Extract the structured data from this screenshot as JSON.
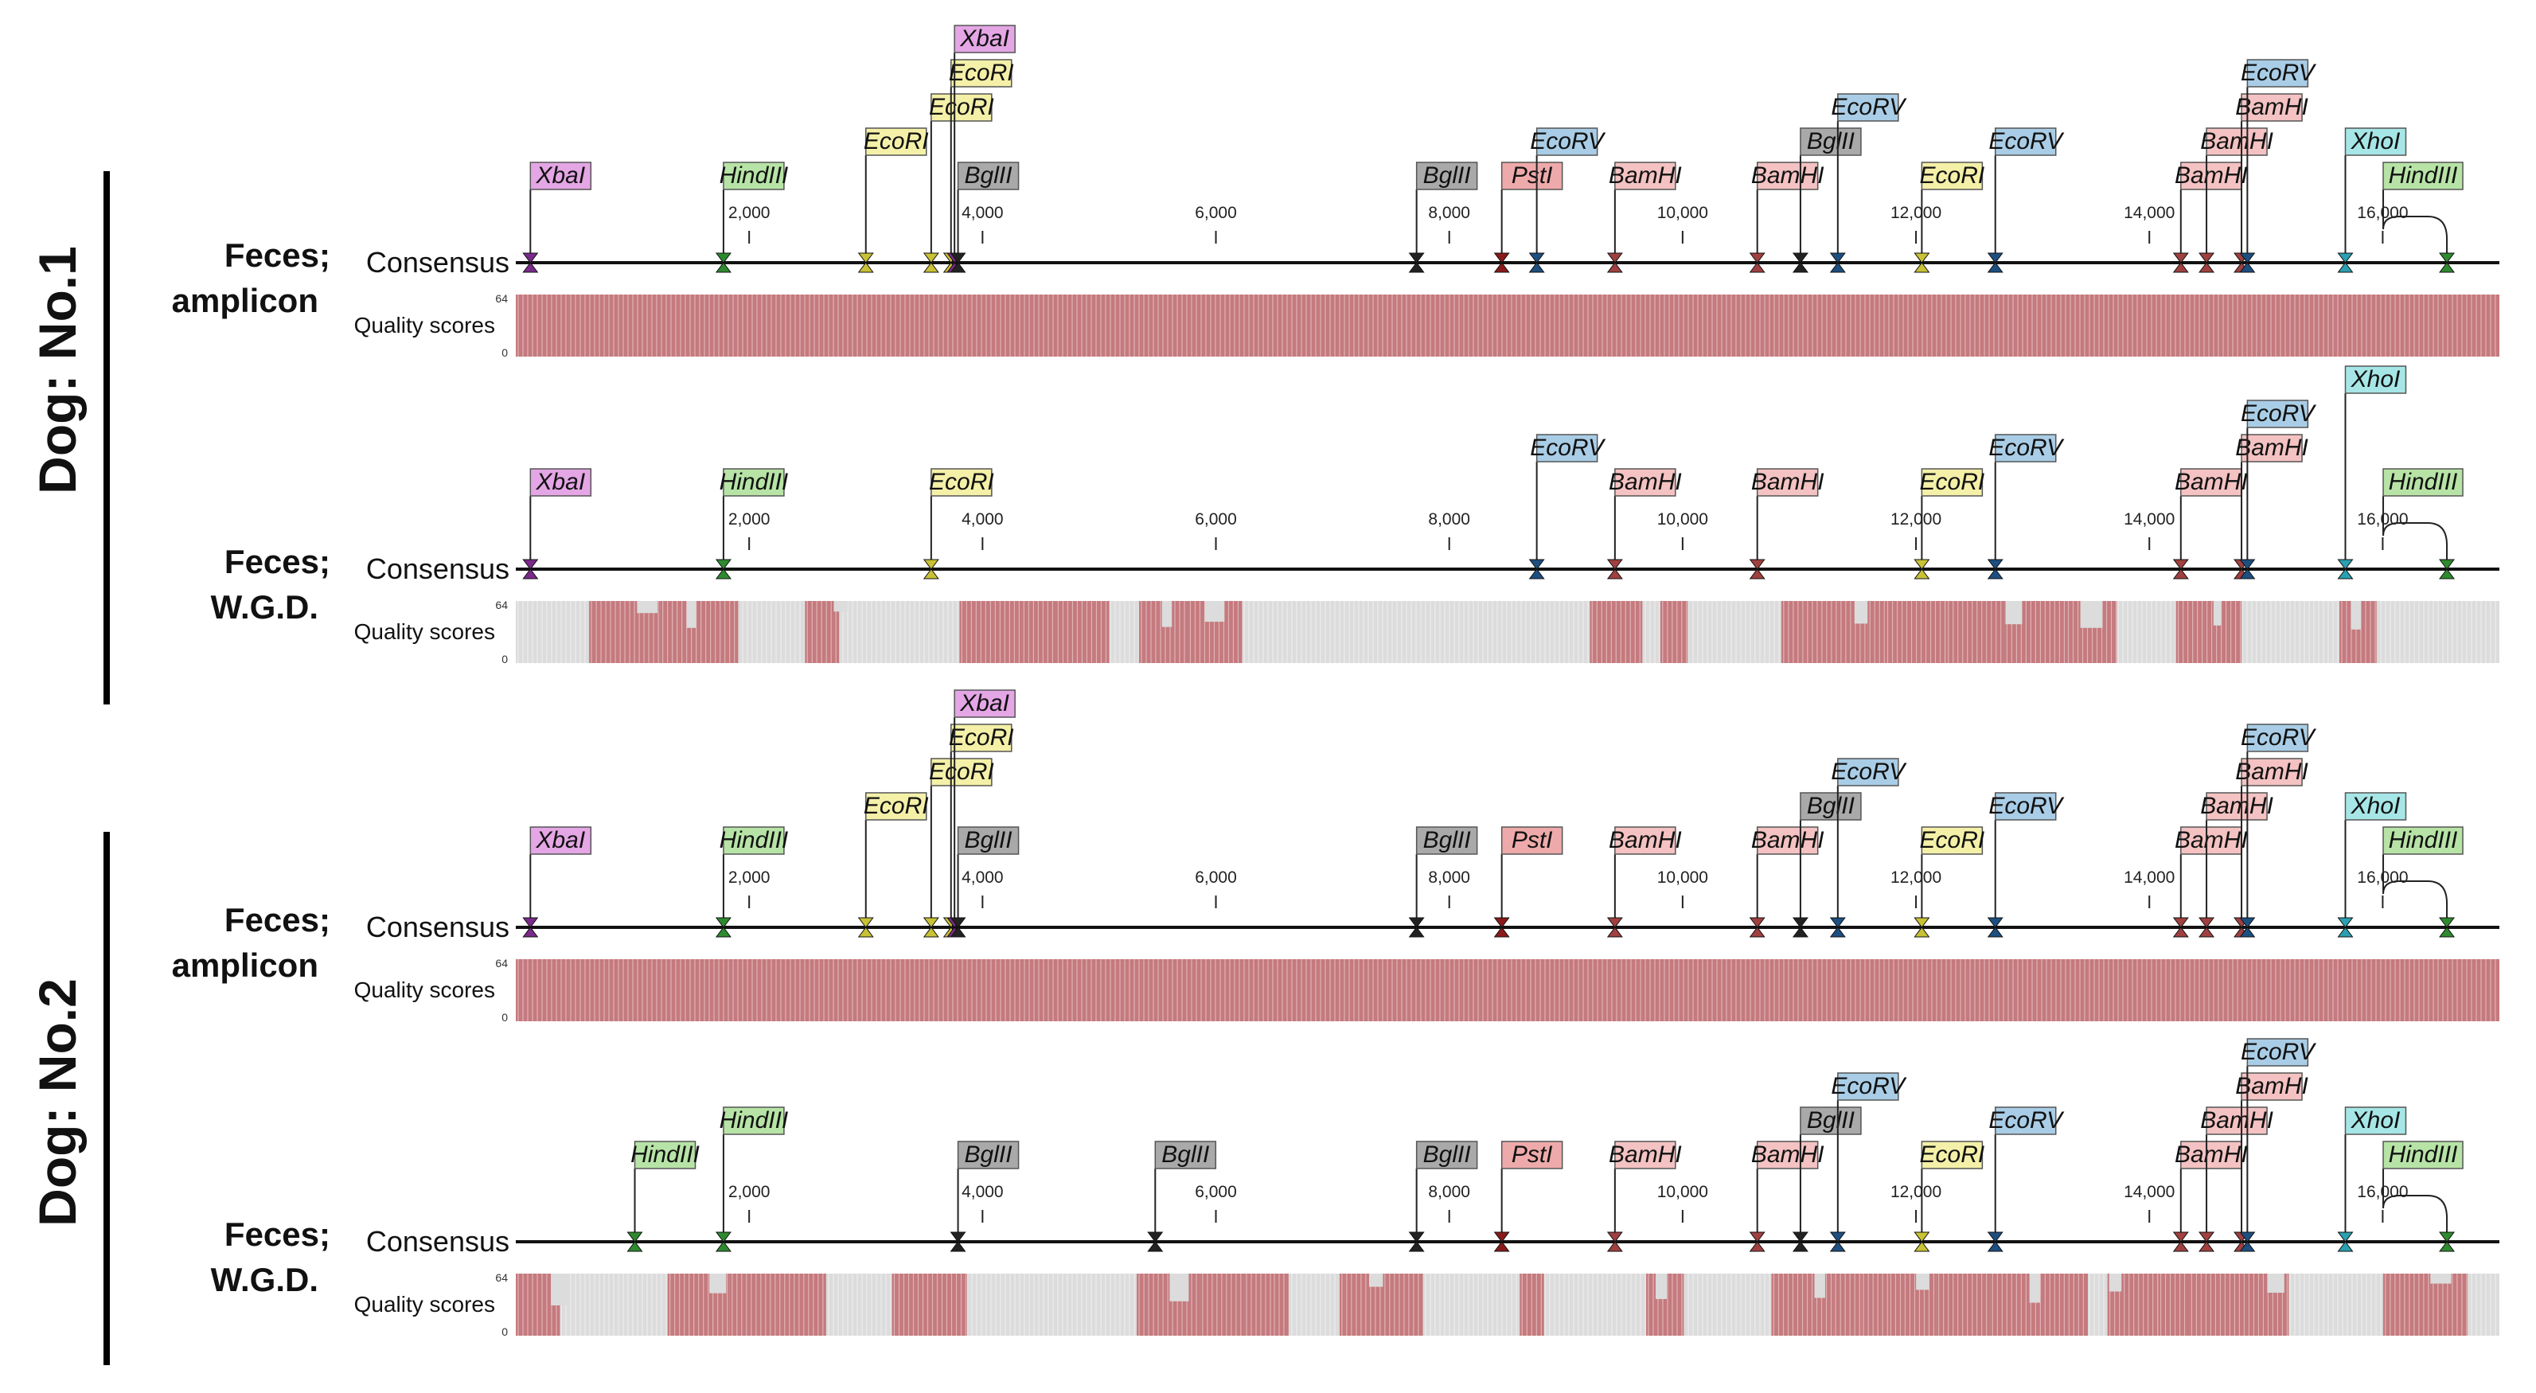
{
  "enzyme_colors": {
    "XbaI": "#e4a6e4",
    "HindIII": "#b7e4a6",
    "EcoRI": "#f4f0a8",
    "BglII": "#a9a9a9",
    "PstI": "#eeaaaa",
    "BamHI": "#f4c2c2",
    "EcoRV": "#a9cde6",
    "XhoI": "#a6e6e6"
  },
  "marker_colors": {
    "XbaI": "#7a2a8a",
    "HindIII": "#2e8a2e",
    "EcoRI": "#c9c234",
    "BglII": "#222222",
    "PstI": "#8a1a1a",
    "BamHI": "#a04040",
    "EcoRV": "#1d4f80",
    "XhoI": "#2aa0b0"
  },
  "quality_colors": {
    "bar": "#c47a7e",
    "gap": "#dcdcdc"
  },
  "groups": [
    {
      "label": "Dog: No.1"
    },
    {
      "label": "Dog: No.2"
    }
  ],
  "tracks": [
    {
      "sample_line1": "Feces;",
      "sample_line2": "amplicon",
      "consensus_label": "Consensus",
      "quality_label": "Quality scores",
      "q_max": "64",
      "q_min": "0",
      "ticks": [
        "2,000",
        "4,000",
        "6,000",
        "8,000",
        "10,000",
        "12,000",
        "14,000",
        "16,000"
      ],
      "quality": "full",
      "sites": [
        {
          "enzyme": "XbaI",
          "pos": 125,
          "level": 0
        },
        {
          "enzyme": "HindIII",
          "pos": 1780,
          "level": 0
        },
        {
          "enzyme": "EcoRI",
          "pos": 3000,
          "level": 1
        },
        {
          "enzyme": "EcoRI",
          "pos": 3560,
          "level": 2
        },
        {
          "enzyme": "EcoRI",
          "pos": 3730,
          "level": 3
        },
        {
          "enzyme": "XbaI",
          "pos": 3760,
          "level": 4
        },
        {
          "enzyme": "BglII",
          "pos": 3790,
          "level": 0
        },
        {
          "enzyme": "BglII",
          "pos": 7720,
          "level": 0
        },
        {
          "enzyme": "PstI",
          "pos": 8450,
          "level": 0
        },
        {
          "enzyme": "EcoRV",
          "pos": 8750,
          "level": 1
        },
        {
          "enzyme": "BamHI",
          "pos": 9420,
          "level": 0
        },
        {
          "enzyme": "BamHI",
          "pos": 10640,
          "level": 0
        },
        {
          "enzyme": "BglII",
          "pos": 11010,
          "level": 1
        },
        {
          "enzyme": "EcoRV",
          "pos": 11330,
          "level": 2
        },
        {
          "enzyme": "EcoRI",
          "pos": 12050,
          "level": 0
        },
        {
          "enzyme": "EcoRV",
          "pos": 12680,
          "level": 1
        },
        {
          "enzyme": "BamHI",
          "pos": 14270,
          "level": 0
        },
        {
          "enzyme": "BamHI",
          "pos": 14490,
          "level": 1
        },
        {
          "enzyme": "BamHI",
          "pos": 14790,
          "level": 2
        },
        {
          "enzyme": "EcoRV",
          "pos": 14840,
          "level": 3
        },
        {
          "enzyme": "XhoI",
          "pos": 15680,
          "level": 1
        },
        {
          "enzyme": "HindIII",
          "pos": 16550,
          "level": 0,
          "hook": true
        }
      ]
    },
    {
      "sample_line1": "Feces;",
      "sample_line2": "W.G.D.",
      "consensus_label": "Consensus",
      "quality_label": "Quality scores",
      "q_max": "64",
      "q_min": "0",
      "ticks": [
        "2,000",
        "4,000",
        "6,000",
        "8,000",
        "10,000",
        "12,000",
        "14,000",
        "16,000"
      ],
      "quality": "gappy",
      "sites": [
        {
          "enzyme": "XbaI",
          "pos": 125,
          "level": 0
        },
        {
          "enzyme": "HindIII",
          "pos": 1780,
          "level": 0
        },
        {
          "enzyme": "EcoRI",
          "pos": 3560,
          "level": 0
        },
        {
          "enzyme": "EcoRV",
          "pos": 8750,
          "level": 1
        },
        {
          "enzyme": "BamHI",
          "pos": 9420,
          "level": 0
        },
        {
          "enzyme": "BamHI",
          "pos": 10640,
          "level": 0
        },
        {
          "enzyme": "EcoRI",
          "pos": 12050,
          "level": 0
        },
        {
          "enzyme": "EcoRV",
          "pos": 12680,
          "level": 1
        },
        {
          "enzyme": "BamHI",
          "pos": 14270,
          "level": 0
        },
        {
          "enzyme": "BamHI",
          "pos": 14790,
          "level": 1
        },
        {
          "enzyme": "EcoRV",
          "pos": 14840,
          "level": 2
        },
        {
          "enzyme": "XhoI",
          "pos": 15680,
          "level": 3
        },
        {
          "enzyme": "HindIII",
          "pos": 16550,
          "level": 0,
          "hook": true
        }
      ]
    },
    {
      "sample_line1": "Feces;",
      "sample_line2": "amplicon",
      "consensus_label": "Consensus",
      "quality_label": "Quality scores",
      "q_max": "64",
      "q_min": "0",
      "ticks": [
        "2,000",
        "4,000",
        "6,000",
        "8,000",
        "10,000",
        "12,000",
        "14,000",
        "16,000"
      ],
      "quality": "full",
      "sites": [
        {
          "enzyme": "XbaI",
          "pos": 125,
          "level": 0
        },
        {
          "enzyme": "HindIII",
          "pos": 1780,
          "level": 0
        },
        {
          "enzyme": "EcoRI",
          "pos": 3000,
          "level": 1
        },
        {
          "enzyme": "EcoRI",
          "pos": 3560,
          "level": 2
        },
        {
          "enzyme": "EcoRI",
          "pos": 3730,
          "level": 3
        },
        {
          "enzyme": "XbaI",
          "pos": 3760,
          "level": 4
        },
        {
          "enzyme": "BglII",
          "pos": 3790,
          "level": 0
        },
        {
          "enzyme": "BglII",
          "pos": 7720,
          "level": 0
        },
        {
          "enzyme": "PstI",
          "pos": 8450,
          "level": 0
        },
        {
          "enzyme": "BamHI",
          "pos": 9420,
          "level": 0
        },
        {
          "enzyme": "BamHI",
          "pos": 10640,
          "level": 0
        },
        {
          "enzyme": "BglII",
          "pos": 11010,
          "level": 1
        },
        {
          "enzyme": "EcoRV",
          "pos": 11330,
          "level": 2
        },
        {
          "enzyme": "EcoRI",
          "pos": 12050,
          "level": 0
        },
        {
          "enzyme": "EcoRV",
          "pos": 12680,
          "level": 1
        },
        {
          "enzyme": "BamHI",
          "pos": 14270,
          "level": 0
        },
        {
          "enzyme": "BamHI",
          "pos": 14490,
          "level": 1
        },
        {
          "enzyme": "BamHI",
          "pos": 14790,
          "level": 2
        },
        {
          "enzyme": "EcoRV",
          "pos": 14840,
          "level": 3
        },
        {
          "enzyme": "XhoI",
          "pos": 15680,
          "level": 1
        },
        {
          "enzyme": "HindIII",
          "pos": 16550,
          "level": 0,
          "hook": true
        }
      ]
    },
    {
      "sample_line1": "Feces;",
      "sample_line2": "W.G.D.",
      "consensus_label": "Consensus",
      "quality_label": "Quality scores",
      "q_max": "64",
      "q_min": "0",
      "ticks": [
        "2,000",
        "4,000",
        "6,000",
        "8,000",
        "10,000",
        "12,000",
        "14,000",
        "16,000"
      ],
      "quality": "gappy",
      "sites": [
        {
          "enzyme": "HindIII",
          "pos": 1020,
          "level": 0
        },
        {
          "enzyme": "HindIII",
          "pos": 1780,
          "level": 1
        },
        {
          "enzyme": "BglII",
          "pos": 3790,
          "level": 0
        },
        {
          "enzyme": "BglII",
          "pos": 5480,
          "level": 0
        },
        {
          "enzyme": "BglII",
          "pos": 7720,
          "level": 0
        },
        {
          "enzyme": "PstI",
          "pos": 8450,
          "level": 0
        },
        {
          "enzyme": "BamHI",
          "pos": 9420,
          "level": 0
        },
        {
          "enzyme": "BamHI",
          "pos": 10640,
          "level": 0
        },
        {
          "enzyme": "BglII",
          "pos": 11010,
          "level": 1
        },
        {
          "enzyme": "EcoRV",
          "pos": 11330,
          "level": 2
        },
        {
          "enzyme": "EcoRI",
          "pos": 12050,
          "level": 0
        },
        {
          "enzyme": "EcoRV",
          "pos": 12680,
          "level": 1
        },
        {
          "enzyme": "BamHI",
          "pos": 14270,
          "level": 0
        },
        {
          "enzyme": "BamHI",
          "pos": 14490,
          "level": 1
        },
        {
          "enzyme": "BamHI",
          "pos": 14790,
          "level": 2
        },
        {
          "enzyme": "EcoRV",
          "pos": 14840,
          "level": 3
        },
        {
          "enzyme": "XhoI",
          "pos": 15680,
          "level": 1
        },
        {
          "enzyme": "HindIII",
          "pos": 16550,
          "level": 0,
          "hook": true
        }
      ]
    }
  ]
}
